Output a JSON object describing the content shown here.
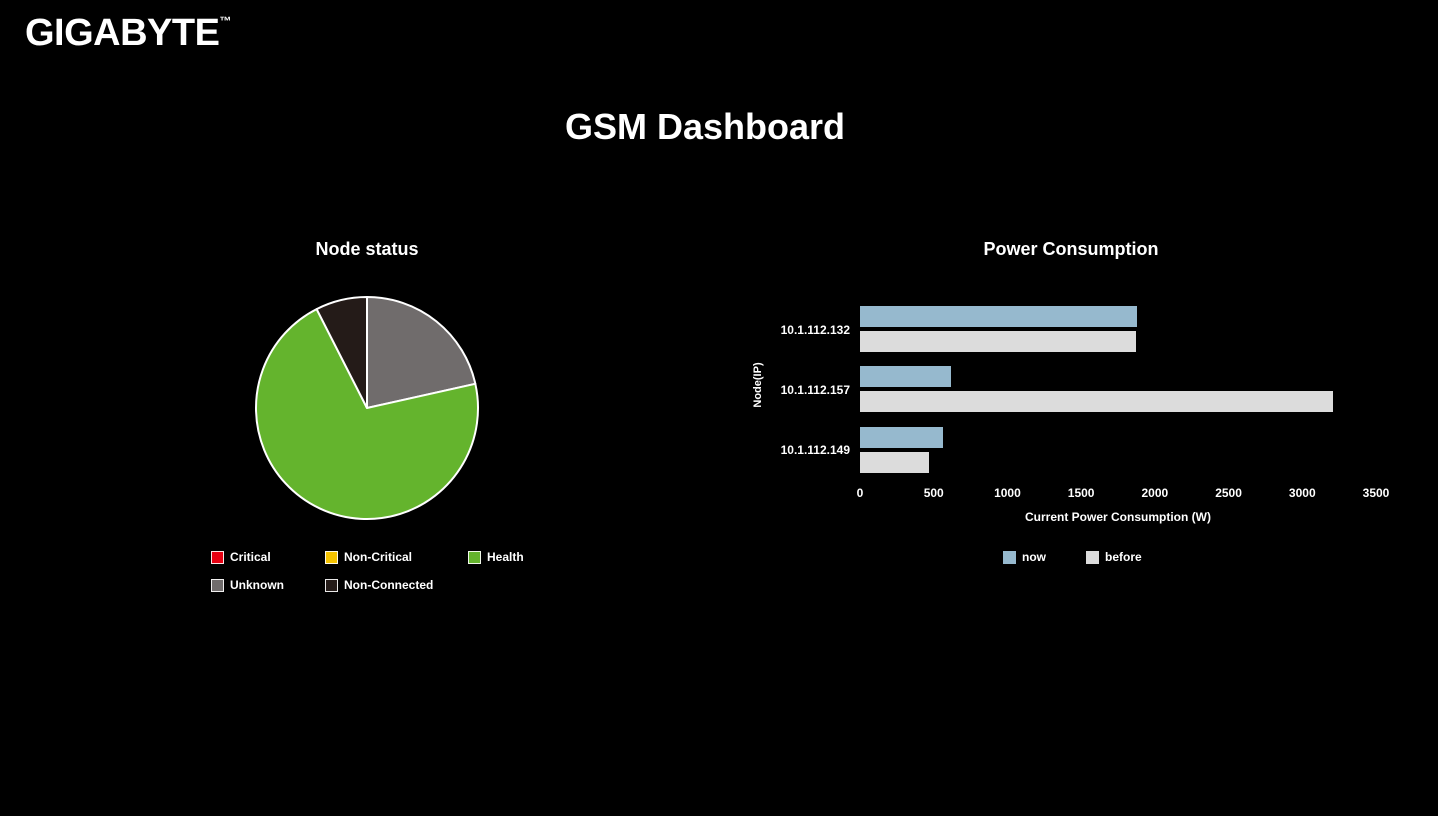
{
  "page": {
    "brand": "GIGABYTE",
    "brand_tm": "™",
    "title": "GSM Dashboard",
    "background_color": "#000000",
    "text_color": "#ffffff"
  },
  "chart_data": [
    {
      "type": "pie",
      "title": "Node status",
      "labels": [
        "Critical",
        "Non-Critical",
        "Health",
        "Unknown",
        "Non-Connected"
      ],
      "values_percent": [
        0,
        0,
        71,
        21.5,
        7.5
      ],
      "colors": [
        "#e60012",
        "#f5c300",
        "#64b42d",
        "#706c6c",
        "#241b18"
      ],
      "slice_border_color": "#ffffff",
      "render_order_clockwise_from_top": [
        "Unknown",
        "Health",
        "Non-Connected"
      ],
      "legend_position": "bottom-left",
      "legend_rows": [
        [
          "Critical",
          "Non-Critical",
          "Health"
        ],
        [
          "Unknown",
          "Non-Connected"
        ]
      ]
    },
    {
      "type": "bar",
      "orientation": "horizontal",
      "title": "Power Consumption",
      "categories": [
        "10.1.112.132",
        "10.1.112.157",
        "10.1.112.149"
      ],
      "series": [
        {
          "name": "now",
          "values": [
            1880,
            620,
            560
          ],
          "color": "#96b9ce"
        },
        {
          "name": "before",
          "values": [
            1870,
            3210,
            470
          ],
          "color": "#dcdcdc"
        }
      ],
      "xlabel": "Current Power Consumption (W)",
      "ylabel": "Node(IP)",
      "xlim": [
        0,
        3500
      ],
      "x_ticks": [
        "0",
        "500",
        "1000",
        "1500",
        "2000",
        "2500",
        "3000",
        "3500"
      ],
      "grid": false,
      "legend_position": "bottom-center"
    }
  ]
}
